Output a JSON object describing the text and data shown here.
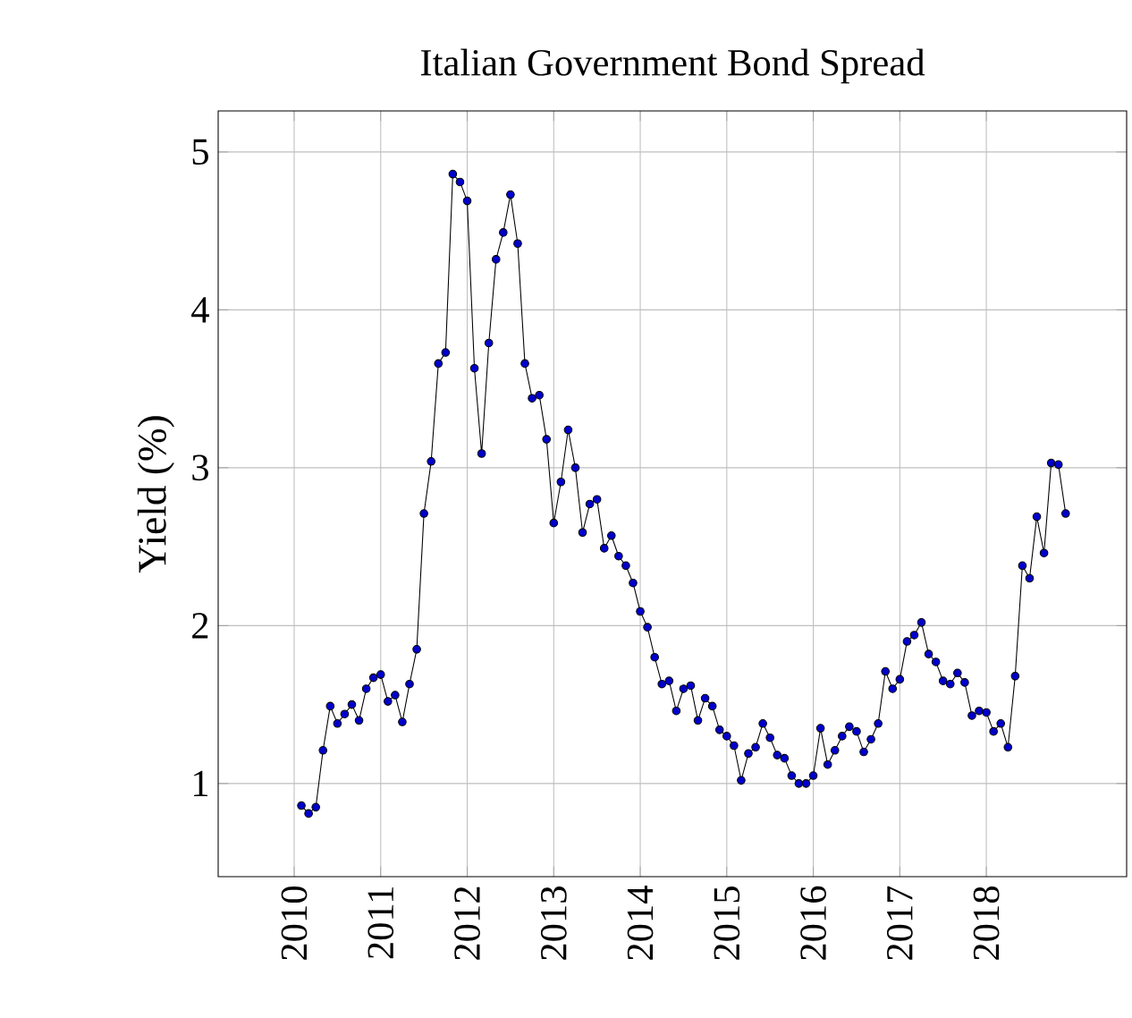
{
  "chart_data": {
    "type": "line",
    "title": "Italian Government Bond Spread",
    "ylabel": "Yield (%)",
    "x": [
      "2010-02",
      "2010-03",
      "2010-04",
      "2010-05",
      "2010-06",
      "2010-07",
      "2010-08",
      "2010-09",
      "2010-10",
      "2010-11",
      "2010-12",
      "2011-01",
      "2011-02",
      "2011-03",
      "2011-04",
      "2011-05",
      "2011-06",
      "2011-07",
      "2011-08",
      "2011-09",
      "2011-10",
      "2011-11",
      "2011-12",
      "2012-01",
      "2012-02",
      "2012-03",
      "2012-04",
      "2012-05",
      "2012-06",
      "2012-07",
      "2012-08",
      "2012-09",
      "2012-10",
      "2012-11",
      "2012-12",
      "2013-01",
      "2013-02",
      "2013-03",
      "2013-04",
      "2013-05",
      "2013-06",
      "2013-07",
      "2013-08",
      "2013-09",
      "2013-10",
      "2013-11",
      "2013-12",
      "2014-01",
      "2014-02",
      "2014-03",
      "2014-04",
      "2014-05",
      "2014-06",
      "2014-07",
      "2014-08",
      "2014-09",
      "2014-10",
      "2014-11",
      "2014-12",
      "2015-01",
      "2015-02",
      "2015-03",
      "2015-04",
      "2015-05",
      "2015-06",
      "2015-07",
      "2015-08",
      "2015-09",
      "2015-10",
      "2015-11",
      "2015-12",
      "2016-01",
      "2016-02",
      "2016-03",
      "2016-04",
      "2016-05",
      "2016-06",
      "2016-07",
      "2016-08",
      "2016-09",
      "2016-10",
      "2016-11",
      "2016-12",
      "2017-01",
      "2017-02",
      "2017-03",
      "2017-04",
      "2017-05",
      "2017-06",
      "2017-07",
      "2017-08",
      "2017-09",
      "2017-10",
      "2017-11",
      "2017-12",
      "2018-01",
      "2018-02",
      "2018-03",
      "2018-04",
      "2018-05",
      "2018-06",
      "2018-07",
      "2018-08",
      "2018-09",
      "2018-10",
      "2018-11",
      "2018-12"
    ],
    "values": [
      0.86,
      0.81,
      0.85,
      1.21,
      1.49,
      1.38,
      1.44,
      1.5,
      1.4,
      1.6,
      1.67,
      1.69,
      1.52,
      1.56,
      1.39,
      1.63,
      1.85,
      2.71,
      3.04,
      3.66,
      3.73,
      4.86,
      4.81,
      4.69,
      3.63,
      3.09,
      3.79,
      4.32,
      4.49,
      4.73,
      4.42,
      3.66,
      3.44,
      3.46,
      3.18,
      2.65,
      2.91,
      3.24,
      3.0,
      2.59,
      2.77,
      2.8,
      2.49,
      2.57,
      2.44,
      2.38,
      2.27,
      2.09,
      1.99,
      1.8,
      1.63,
      1.65,
      1.46,
      1.6,
      1.62,
      1.4,
      1.54,
      1.49,
      1.34,
      1.3,
      1.24,
      1.02,
      1.19,
      1.23,
      1.38,
      1.29,
      1.18,
      1.16,
      1.05,
      1.0,
      1.0,
      1.05,
      1.35,
      1.12,
      1.21,
      1.3,
      1.36,
      1.33,
      1.2,
      1.28,
      1.38,
      1.71,
      1.6,
      1.66,
      1.9,
      1.94,
      2.02,
      1.82,
      1.77,
      1.65,
      1.63,
      1.7,
      1.64,
      1.43,
      1.46,
      1.45,
      1.33,
      1.38,
      1.23,
      1.68,
      2.38,
      2.3,
      2.69,
      2.46,
      3.03,
      3.02,
      2.71
    ],
    "color": "#0000cc",
    "marker": "circle",
    "line_style": "solid",
    "grid": true,
    "xlim": [
      "2009-02-15",
      "2019-08-15"
    ],
    "xticks": [
      "2010",
      "2011",
      "2012",
      "2013",
      "2014",
      "2015",
      "2016",
      "2017",
      "2018"
    ],
    "ylim": [
      0.41,
      5.26
    ],
    "yticks": [
      1,
      2,
      3,
      4,
      5
    ]
  }
}
